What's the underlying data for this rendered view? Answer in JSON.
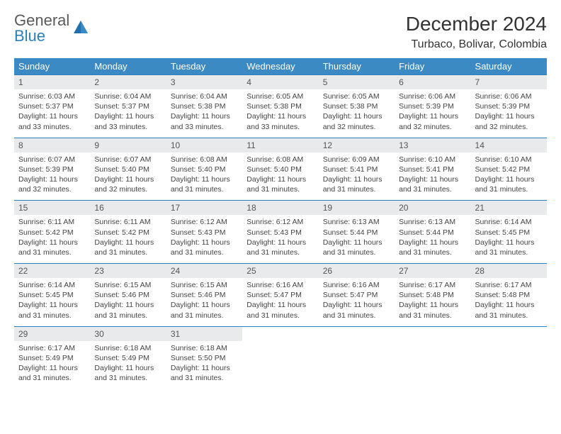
{
  "logo": {
    "line1": "General",
    "line2": "Blue"
  },
  "title": "December 2024",
  "location": "Turbaco, Bolivar, Colombia",
  "colors": {
    "header_bg": "#3b8ac4",
    "header_text": "#ffffff",
    "daynum_bg": "#e9eaec",
    "border": "#2a7fbf",
    "logo_gray": "#5a5a5a",
    "logo_blue": "#2a7fbf"
  },
  "dow": [
    "Sunday",
    "Monday",
    "Tuesday",
    "Wednesday",
    "Thursday",
    "Friday",
    "Saturday"
  ],
  "weeks": [
    [
      {
        "n": "1",
        "rise": "Sunrise: 6:03 AM",
        "set": "Sunset: 5:37 PM",
        "dl": "Daylight: 11 hours and 33 minutes."
      },
      {
        "n": "2",
        "rise": "Sunrise: 6:04 AM",
        "set": "Sunset: 5:37 PM",
        "dl": "Daylight: 11 hours and 33 minutes."
      },
      {
        "n": "3",
        "rise": "Sunrise: 6:04 AM",
        "set": "Sunset: 5:38 PM",
        "dl": "Daylight: 11 hours and 33 minutes."
      },
      {
        "n": "4",
        "rise": "Sunrise: 6:05 AM",
        "set": "Sunset: 5:38 PM",
        "dl": "Daylight: 11 hours and 33 minutes."
      },
      {
        "n": "5",
        "rise": "Sunrise: 6:05 AM",
        "set": "Sunset: 5:38 PM",
        "dl": "Daylight: 11 hours and 32 minutes."
      },
      {
        "n": "6",
        "rise": "Sunrise: 6:06 AM",
        "set": "Sunset: 5:39 PM",
        "dl": "Daylight: 11 hours and 32 minutes."
      },
      {
        "n": "7",
        "rise": "Sunrise: 6:06 AM",
        "set": "Sunset: 5:39 PM",
        "dl": "Daylight: 11 hours and 32 minutes."
      }
    ],
    [
      {
        "n": "8",
        "rise": "Sunrise: 6:07 AM",
        "set": "Sunset: 5:39 PM",
        "dl": "Daylight: 11 hours and 32 minutes."
      },
      {
        "n": "9",
        "rise": "Sunrise: 6:07 AM",
        "set": "Sunset: 5:40 PM",
        "dl": "Daylight: 11 hours and 32 minutes."
      },
      {
        "n": "10",
        "rise": "Sunrise: 6:08 AM",
        "set": "Sunset: 5:40 PM",
        "dl": "Daylight: 11 hours and 31 minutes."
      },
      {
        "n": "11",
        "rise": "Sunrise: 6:08 AM",
        "set": "Sunset: 5:40 PM",
        "dl": "Daylight: 11 hours and 31 minutes."
      },
      {
        "n": "12",
        "rise": "Sunrise: 6:09 AM",
        "set": "Sunset: 5:41 PM",
        "dl": "Daylight: 11 hours and 31 minutes."
      },
      {
        "n": "13",
        "rise": "Sunrise: 6:10 AM",
        "set": "Sunset: 5:41 PM",
        "dl": "Daylight: 11 hours and 31 minutes."
      },
      {
        "n": "14",
        "rise": "Sunrise: 6:10 AM",
        "set": "Sunset: 5:42 PM",
        "dl": "Daylight: 11 hours and 31 minutes."
      }
    ],
    [
      {
        "n": "15",
        "rise": "Sunrise: 6:11 AM",
        "set": "Sunset: 5:42 PM",
        "dl": "Daylight: 11 hours and 31 minutes."
      },
      {
        "n": "16",
        "rise": "Sunrise: 6:11 AM",
        "set": "Sunset: 5:42 PM",
        "dl": "Daylight: 11 hours and 31 minutes."
      },
      {
        "n": "17",
        "rise": "Sunrise: 6:12 AM",
        "set": "Sunset: 5:43 PM",
        "dl": "Daylight: 11 hours and 31 minutes."
      },
      {
        "n": "18",
        "rise": "Sunrise: 6:12 AM",
        "set": "Sunset: 5:43 PM",
        "dl": "Daylight: 11 hours and 31 minutes."
      },
      {
        "n": "19",
        "rise": "Sunrise: 6:13 AM",
        "set": "Sunset: 5:44 PM",
        "dl": "Daylight: 11 hours and 31 minutes."
      },
      {
        "n": "20",
        "rise": "Sunrise: 6:13 AM",
        "set": "Sunset: 5:44 PM",
        "dl": "Daylight: 11 hours and 31 minutes."
      },
      {
        "n": "21",
        "rise": "Sunrise: 6:14 AM",
        "set": "Sunset: 5:45 PM",
        "dl": "Daylight: 11 hours and 31 minutes."
      }
    ],
    [
      {
        "n": "22",
        "rise": "Sunrise: 6:14 AM",
        "set": "Sunset: 5:45 PM",
        "dl": "Daylight: 11 hours and 31 minutes."
      },
      {
        "n": "23",
        "rise": "Sunrise: 6:15 AM",
        "set": "Sunset: 5:46 PM",
        "dl": "Daylight: 11 hours and 31 minutes."
      },
      {
        "n": "24",
        "rise": "Sunrise: 6:15 AM",
        "set": "Sunset: 5:46 PM",
        "dl": "Daylight: 11 hours and 31 minutes."
      },
      {
        "n": "25",
        "rise": "Sunrise: 6:16 AM",
        "set": "Sunset: 5:47 PM",
        "dl": "Daylight: 11 hours and 31 minutes."
      },
      {
        "n": "26",
        "rise": "Sunrise: 6:16 AM",
        "set": "Sunset: 5:47 PM",
        "dl": "Daylight: 11 hours and 31 minutes."
      },
      {
        "n": "27",
        "rise": "Sunrise: 6:17 AM",
        "set": "Sunset: 5:48 PM",
        "dl": "Daylight: 11 hours and 31 minutes."
      },
      {
        "n": "28",
        "rise": "Sunrise: 6:17 AM",
        "set": "Sunset: 5:48 PM",
        "dl": "Daylight: 11 hours and 31 minutes."
      }
    ],
    [
      {
        "n": "29",
        "rise": "Sunrise: 6:17 AM",
        "set": "Sunset: 5:49 PM",
        "dl": "Daylight: 11 hours and 31 minutes."
      },
      {
        "n": "30",
        "rise": "Sunrise: 6:18 AM",
        "set": "Sunset: 5:49 PM",
        "dl": "Daylight: 11 hours and 31 minutes."
      },
      {
        "n": "31",
        "rise": "Sunrise: 6:18 AM",
        "set": "Sunset: 5:50 PM",
        "dl": "Daylight: 11 hours and 31 minutes."
      },
      null,
      null,
      null,
      null
    ]
  ]
}
